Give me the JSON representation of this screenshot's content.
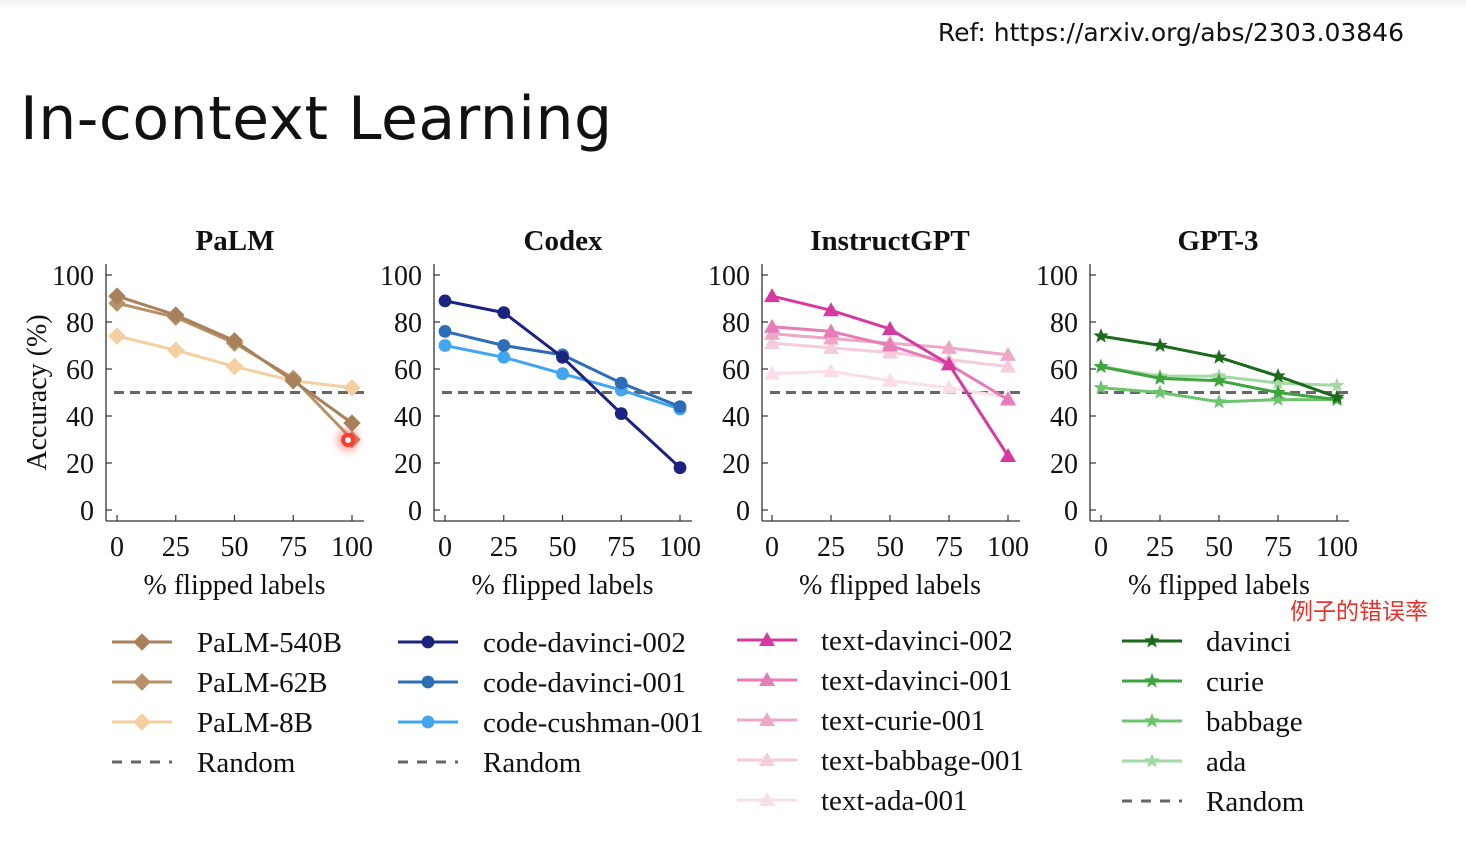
{
  "slide": {
    "ref": "Ref: https://arxiv.org/abs/2303.03846",
    "title": "In-context Learning",
    "note": "例子的错误率"
  },
  "chart_data": [
    {
      "type": "line",
      "title": "PaLM",
      "xlabel": "% flipped labels",
      "ylabel": "Accuracy (%)",
      "x": [
        0,
        25,
        50,
        75,
        100
      ],
      "xticks": [
        "0",
        "25",
        "50",
        "75",
        "100"
      ],
      "yticks": [
        "0",
        "20",
        "40",
        "60",
        "80",
        "100"
      ],
      "ylim": [
        0,
        100
      ],
      "random_baseline": 50,
      "series": [
        {
          "name": "PaLM-540B",
          "values": [
            91,
            83,
            72,
            55,
            37
          ],
          "color": "#a8805a",
          "marker": "diamond"
        },
        {
          "name": "PaLM-62B",
          "values": [
            88,
            82,
            71,
            56,
            30
          ],
          "color": "#b79266",
          "marker": "diamond"
        },
        {
          "name": "PaLM-8B",
          "values": [
            74,
            68,
            61,
            55,
            52
          ],
          "color": "#f5cfa0",
          "marker": "diamond"
        }
      ],
      "legend": [
        {
          "label": "PaLM-540B",
          "color": "#a8805a",
          "marker": "diamond"
        },
        {
          "label": "PaLM-62B",
          "color": "#b79266",
          "marker": "diamond"
        },
        {
          "label": "PaLM-8B",
          "color": "#f5cfa0",
          "marker": "diamond"
        },
        {
          "label": "Random",
          "color": "#666666",
          "marker": "dash"
        }
      ]
    },
    {
      "type": "line",
      "title": "Codex",
      "xlabel": "% flipped labels",
      "ylabel": "",
      "x": [
        0,
        25,
        50,
        75,
        100
      ],
      "xticks": [
        "0",
        "25",
        "50",
        "75",
        "100"
      ],
      "yticks": [
        "0",
        "20",
        "40",
        "60",
        "80",
        "100"
      ],
      "ylim": [
        0,
        100
      ],
      "random_baseline": 50,
      "series": [
        {
          "name": "code-davinci-002",
          "values": [
            89,
            84,
            65,
            41,
            18
          ],
          "color": "#1a237e",
          "marker": "circle"
        },
        {
          "name": "code-davinci-001",
          "values": [
            76,
            70,
            66,
            54,
            44
          ],
          "color": "#2e6db8",
          "marker": "circle"
        },
        {
          "name": "code-cushman-001",
          "values": [
            70,
            65,
            58,
            51,
            43
          ],
          "color": "#42a5f0",
          "marker": "circle"
        }
      ],
      "legend": [
        {
          "label": "code-davinci-002",
          "color": "#1a237e",
          "marker": "circle"
        },
        {
          "label": "code-davinci-001",
          "color": "#2e6db8",
          "marker": "circle"
        },
        {
          "label": "code-cushman-001",
          "color": "#42a5f0",
          "marker": "circle"
        },
        {
          "label": "Random",
          "color": "#666666",
          "marker": "dash"
        }
      ]
    },
    {
      "type": "line",
      "title": "InstructGPT",
      "xlabel": "% flipped labels",
      "ylabel": "",
      "x": [
        0,
        25,
        50,
        75,
        100
      ],
      "xticks": [
        "0",
        "25",
        "50",
        "75",
        "100"
      ],
      "yticks": [
        "0",
        "20",
        "40",
        "60",
        "80",
        "100"
      ],
      "ylim": [
        0,
        100
      ],
      "random_baseline": 50,
      "series": [
        {
          "name": "text-davinci-002",
          "values": [
            91,
            85,
            77,
            62,
            23
          ],
          "color": "#d63aa0",
          "marker": "triangle"
        },
        {
          "name": "text-davinci-001",
          "values": [
            78,
            76,
            70,
            62,
            47
          ],
          "color": "#e67cb8",
          "marker": "triangle"
        },
        {
          "name": "text-curie-001",
          "values": [
            75,
            73,
            71,
            69,
            66
          ],
          "color": "#eda8c8",
          "marker": "triangle"
        },
        {
          "name": "text-babbage-001",
          "values": [
            71,
            69,
            67,
            64,
            61
          ],
          "color": "#f5ccdc",
          "marker": "triangle"
        },
        {
          "name": "text-ada-001",
          "values": [
            58,
            59,
            55,
            52,
            48
          ],
          "color": "#fadde6",
          "marker": "triangle"
        }
      ],
      "legend": [
        {
          "label": "text-davinci-002",
          "color": "#d63aa0",
          "marker": "triangle"
        },
        {
          "label": "text-davinci-001",
          "color": "#e67cb8",
          "marker": "triangle"
        },
        {
          "label": "text-curie-001",
          "color": "#eda8c8",
          "marker": "triangle"
        },
        {
          "label": "text-babbage-001",
          "color": "#f5ccdc",
          "marker": "triangle"
        },
        {
          "label": "text-ada-001",
          "color": "#fadde6",
          "marker": "triangle"
        }
      ]
    },
    {
      "type": "line",
      "title": "GPT-3",
      "xlabel": "% flipped labels",
      "ylabel": "",
      "x": [
        0,
        25,
        50,
        75,
        100
      ],
      "xticks": [
        "0",
        "25",
        "50",
        "75",
        "100"
      ],
      "yticks": [
        "0",
        "20",
        "40",
        "60",
        "80",
        "100"
      ],
      "ylim": [
        0,
        100
      ],
      "random_baseline": 50,
      "series": [
        {
          "name": "davinci",
          "values": [
            74,
            70,
            65,
            57,
            48
          ],
          "color": "#1b6b1b",
          "marker": "star"
        },
        {
          "name": "curie",
          "values": [
            61,
            56,
            55,
            50,
            47
          ],
          "color": "#3ea53e",
          "marker": "star"
        },
        {
          "name": "babbage",
          "values": [
            52,
            50,
            46,
            47,
            47
          ],
          "color": "#6cc46c",
          "marker": "star"
        },
        {
          "name": "ada",
          "values": [
            61,
            57,
            57,
            54,
            53
          ],
          "color": "#a3d9a3",
          "marker": "star"
        }
      ],
      "legend": [
        {
          "label": "davinci",
          "color": "#1b6b1b",
          "marker": "star"
        },
        {
          "label": "curie",
          "color": "#3ea53e",
          "marker": "star"
        },
        {
          "label": "babbage",
          "color": "#6cc46c",
          "marker": "star"
        },
        {
          "label": "ada",
          "color": "#a3d9a3",
          "marker": "star"
        },
        {
          "label": "Random",
          "color": "#666666",
          "marker": "dash"
        }
      ]
    }
  ]
}
